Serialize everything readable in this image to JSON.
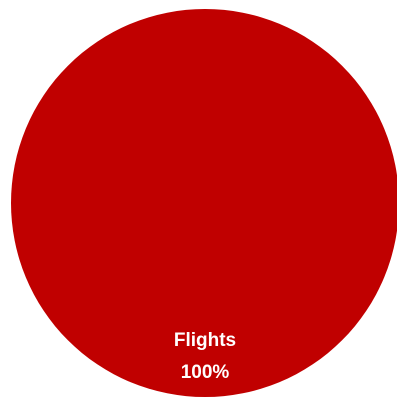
{
  "chart_data": {
    "type": "pie",
    "categories": [
      "Flights"
    ],
    "values": [
      100
    ],
    "labels": [
      "100%"
    ],
    "colors": [
      "#c00000"
    ],
    "legend": "none"
  }
}
